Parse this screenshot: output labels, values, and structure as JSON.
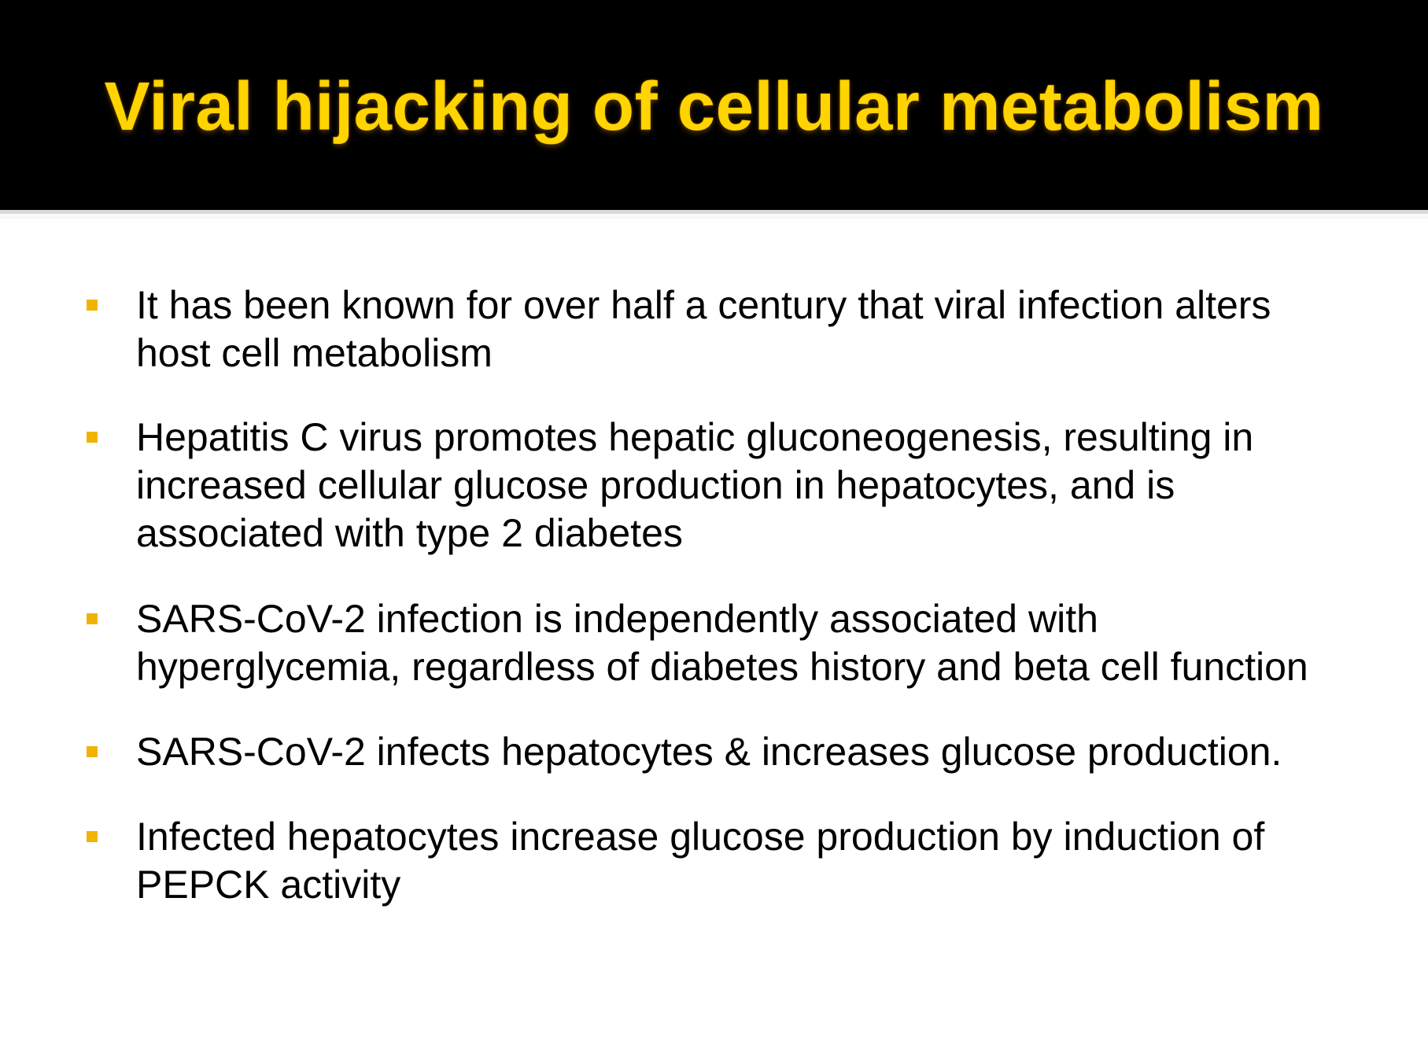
{
  "slide": {
    "title": "Viral hijacking of cellular metabolism",
    "bullets": [
      {
        "line1": "It has been known for over half a century that viral infection alters",
        "line2": "host cell metabolism"
      },
      {
        "line1": "Hepatitis C virus promotes hepatic gluconeogenesis, resulting in",
        "line2": "increased cellular glucose production in hepatocytes, and is",
        "line3": "associated with type 2 diabetes"
      },
      {
        "line1": "SARS-CoV-2 infection is independently associated with",
        "line2": "hyperglycemia, regardless of diabetes history and beta cell function"
      },
      {
        "line1": "SARS-CoV-2 infects hepatocytes & increases glucose production."
      },
      {
        "line1": "Infected hepatocytes increase glucose production by induction of",
        "line2": "PEPCK activity"
      }
    ]
  },
  "colors": {
    "header_background": "#000000",
    "title": "#ffd400",
    "bullet_marker": "#f0b400",
    "body_text": "#000000"
  }
}
